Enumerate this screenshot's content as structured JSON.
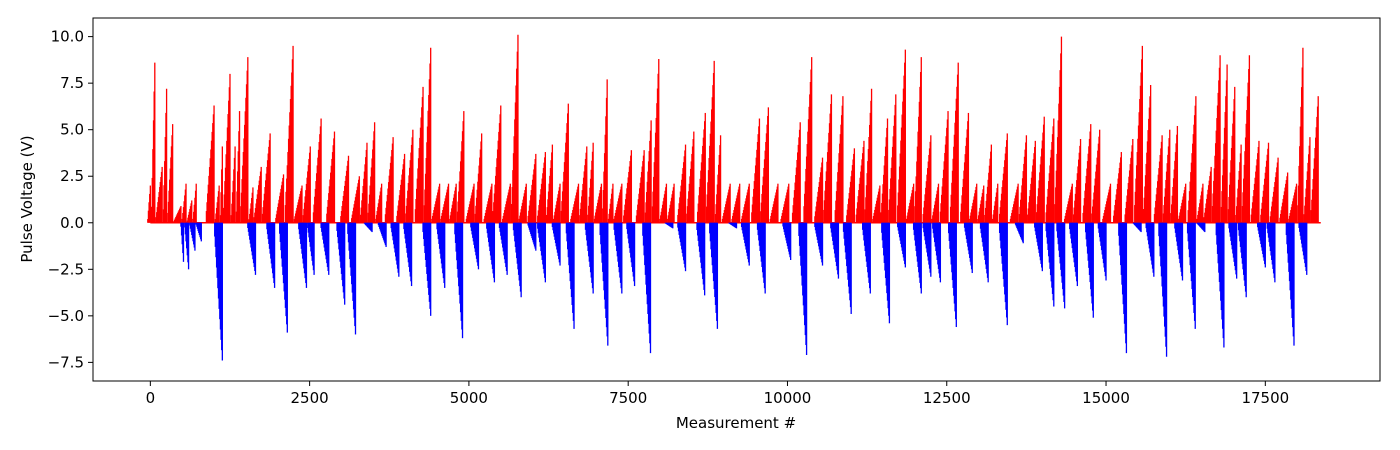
{
  "chart_data": {
    "type": "bar",
    "title": "",
    "xlabel": "Measurement #",
    "ylabel": "Pulse Voltage (V)",
    "xlim": [
      -900,
      19300
    ],
    "ylim": [
      -8.5,
      11.0
    ],
    "xticks": [
      0,
      2500,
      5000,
      7500,
      10000,
      12500,
      15000,
      17500
    ],
    "xtick_labels": [
      "0",
      "2500",
      "5000",
      "7500",
      "10000",
      "12500",
      "15000",
      "17500"
    ],
    "yticks": [
      -7.5,
      -5.0,
      -2.5,
      0.0,
      2.5,
      5.0,
      7.5,
      10.0
    ],
    "ytick_labels": [
      "−7.5",
      "−5.0",
      "−2.5",
      "0.0",
      "2.5",
      "5.0",
      "7.5",
      "10.0"
    ],
    "grid": false,
    "series": [
      {
        "color": "#ff0000",
        "sweeps": [
          [
            0,
            2.0
          ],
          [
            70,
            8.6
          ],
          [
            185,
            3.0
          ],
          [
            255,
            7.2
          ],
          [
            350,
            5.3
          ],
          [
            480,
            0.9
          ],
          [
            560,
            2.1
          ],
          [
            650,
            1.2
          ],
          [
            720,
            2.1
          ],
          [
            1000,
            6.3
          ],
          [
            1080,
            2.0
          ],
          [
            1130,
            4.1
          ],
          [
            1250,
            8.0
          ],
          [
            1330,
            4.1
          ],
          [
            1400,
            6.0
          ],
          [
            1530,
            8.9
          ],
          [
            1610,
            1.9
          ],
          [
            1740,
            3.0
          ],
          [
            1880,
            4.8
          ],
          [
            2090,
            2.6
          ],
          [
            2240,
            9.5
          ],
          [
            2380,
            2.0
          ],
          [
            2510,
            4.1
          ],
          [
            2680,
            5.6
          ],
          [
            2890,
            4.9
          ],
          [
            3110,
            3.6
          ],
          [
            3280,
            2.5
          ],
          [
            3400,
            4.3
          ],
          [
            3520,
            5.4
          ],
          [
            3630,
            2.1
          ],
          [
            3810,
            4.6
          ],
          [
            3990,
            3.7
          ],
          [
            4120,
            5.0
          ],
          [
            4280,
            7.3
          ],
          [
            4400,
            9.4
          ],
          [
            4540,
            2.1
          ],
          [
            4680,
            2.1
          ],
          [
            4800,
            2.1
          ],
          [
            4920,
            6.0
          ],
          [
            5080,
            2.1
          ],
          [
            5200,
            4.8
          ],
          [
            5360,
            2.1
          ],
          [
            5500,
            6.3
          ],
          [
            5650,
            2.1
          ],
          [
            5770,
            10.1
          ],
          [
            5900,
            2.1
          ],
          [
            6050,
            3.7
          ],
          [
            6200,
            3.8
          ],
          [
            6310,
            4.2
          ],
          [
            6430,
            2.1
          ],
          [
            6560,
            6.4
          ],
          [
            6720,
            2.1
          ],
          [
            6850,
            4.1
          ],
          [
            6950,
            4.3
          ],
          [
            7080,
            2.1
          ],
          [
            7170,
            7.7
          ],
          [
            7260,
            2.1
          ],
          [
            7400,
            2.1
          ],
          [
            7550,
            3.9
          ],
          [
            7750,
            3.9
          ],
          [
            7860,
            5.5
          ],
          [
            7980,
            8.8
          ],
          [
            8100,
            2.1
          ],
          [
            8220,
            2.1
          ],
          [
            8400,
            4.2
          ],
          [
            8530,
            4.9
          ],
          [
            8710,
            5.9
          ],
          [
            8850,
            8.7
          ],
          [
            8950,
            4.7
          ],
          [
            9100,
            2.1
          ],
          [
            9250,
            2.1
          ],
          [
            9400,
            2.1
          ],
          [
            9560,
            5.6
          ],
          [
            9700,
            6.2
          ],
          [
            9850,
            2.1
          ],
          [
            10020,
            2.1
          ],
          [
            10200,
            5.4
          ],
          [
            10380,
            8.9
          ],
          [
            10550,
            3.5
          ],
          [
            10690,
            6.9
          ],
          [
            10870,
            6.8
          ],
          [
            11050,
            4.0
          ],
          [
            11200,
            4.4
          ],
          [
            11320,
            7.2
          ],
          [
            11450,
            2.0
          ],
          [
            11570,
            5.6
          ],
          [
            11700,
            6.9
          ],
          [
            11850,
            9.3
          ],
          [
            11980,
            2.1
          ],
          [
            12100,
            8.9
          ],
          [
            12250,
            4.7
          ],
          [
            12370,
            2.1
          ],
          [
            12520,
            6.0
          ],
          [
            12680,
            8.6
          ],
          [
            12840,
            5.9
          ],
          [
            12970,
            2.1
          ],
          [
            13080,
            2.0
          ],
          [
            13200,
            4.2
          ],
          [
            13300,
            2.1
          ],
          [
            13450,
            4.8
          ],
          [
            13620,
            2.1
          ],
          [
            13750,
            4.7
          ],
          [
            13890,
            4.4
          ],
          [
            14030,
            5.7
          ],
          [
            14180,
            5.6
          ],
          [
            14300,
            10.0
          ],
          [
            14470,
            2.1
          ],
          [
            14600,
            4.5
          ],
          [
            14760,
            5.3
          ],
          [
            14900,
            5.0
          ],
          [
            15070,
            2.1
          ],
          [
            15240,
            3.8
          ],
          [
            15420,
            4.5
          ],
          [
            15570,
            9.5
          ],
          [
            15700,
            7.4
          ],
          [
            15880,
            4.7
          ],
          [
            16000,
            5.0
          ],
          [
            16120,
            5.2
          ],
          [
            16250,
            2.1
          ],
          [
            16410,
            6.8
          ],
          [
            16520,
            2.1
          ],
          [
            16650,
            3.0
          ],
          [
            16790,
            9.0
          ],
          [
            16900,
            8.5
          ],
          [
            17020,
            7.3
          ],
          [
            17120,
            4.2
          ],
          [
            17250,
            9.0
          ],
          [
            17400,
            4.4
          ],
          [
            17550,
            4.3
          ],
          [
            17700,
            3.5
          ],
          [
            17850,
            2.7
          ],
          [
            17990,
            2.1
          ],
          [
            18090,
            9.4
          ],
          [
            18200,
            4.6
          ],
          [
            18330,
            6.8
          ]
        ]
      },
      {
        "color": "#0000ff",
        "sweeps": [
          [
            520,
            -2.1
          ],
          [
            600,
            -2.5
          ],
          [
            700,
            -1.5
          ],
          [
            800,
            -1.0
          ],
          [
            1130,
            -7.4
          ],
          [
            1650,
            -2.8
          ],
          [
            1950,
            -3.5
          ],
          [
            2150,
            -5.9
          ],
          [
            2450,
            -3.5
          ],
          [
            2570,
            -2.8
          ],
          [
            2800,
            -2.8
          ],
          [
            3050,
            -4.4
          ],
          [
            3220,
            -6.0
          ],
          [
            3480,
            -0.5
          ],
          [
            3700,
            -1.3
          ],
          [
            3900,
            -2.9
          ],
          [
            4100,
            -3.4
          ],
          [
            4400,
            -5.0
          ],
          [
            4620,
            -3.5
          ],
          [
            4900,
            -6.2
          ],
          [
            5150,
            -2.5
          ],
          [
            5400,
            -3.2
          ],
          [
            5600,
            -2.8
          ],
          [
            5820,
            -4.0
          ],
          [
            6050,
            -1.5
          ],
          [
            6200,
            -3.2
          ],
          [
            6430,
            -2.3
          ],
          [
            6650,
            -5.7
          ],
          [
            6950,
            -3.8
          ],
          [
            7180,
            -6.6
          ],
          [
            7400,
            -3.8
          ],
          [
            7600,
            -3.4
          ],
          [
            7850,
            -7.0
          ],
          [
            8200,
            -0.3
          ],
          [
            8400,
            -2.6
          ],
          [
            8700,
            -3.9
          ],
          [
            8900,
            -5.7
          ],
          [
            9200,
            -0.3
          ],
          [
            9400,
            -2.3
          ],
          [
            9650,
            -3.8
          ],
          [
            10050,
            -2.0
          ],
          [
            10300,
            -7.1
          ],
          [
            10550,
            -2.3
          ],
          [
            10800,
            -3.0
          ],
          [
            11000,
            -4.9
          ],
          [
            11300,
            -3.8
          ],
          [
            11600,
            -5.4
          ],
          [
            11850,
            -2.4
          ],
          [
            12100,
            -3.8
          ],
          [
            12250,
            -2.9
          ],
          [
            12400,
            -3.2
          ],
          [
            12650,
            -5.6
          ],
          [
            12900,
            -2.7
          ],
          [
            13150,
            -3.2
          ],
          [
            13450,
            -5.5
          ],
          [
            13700,
            -1.1
          ],
          [
            14000,
            -2.6
          ],
          [
            14180,
            -4.5
          ],
          [
            14350,
            -4.6
          ],
          [
            14550,
            -3.4
          ],
          [
            14800,
            -5.1
          ],
          [
            15000,
            -3.1
          ],
          [
            15320,
            -7.0
          ],
          [
            15550,
            -0.5
          ],
          [
            15750,
            -2.9
          ],
          [
            15950,
            -7.2
          ],
          [
            16200,
            -3.1
          ],
          [
            16400,
            -5.7
          ],
          [
            16550,
            -0.5
          ],
          [
            16850,
            -6.7
          ],
          [
            17050,
            -3.0
          ],
          [
            17200,
            -4.0
          ],
          [
            17500,
            -2.4
          ],
          [
            17650,
            -3.2
          ],
          [
            17950,
            -6.6
          ],
          [
            18150,
            -2.8
          ]
        ]
      }
    ]
  }
}
